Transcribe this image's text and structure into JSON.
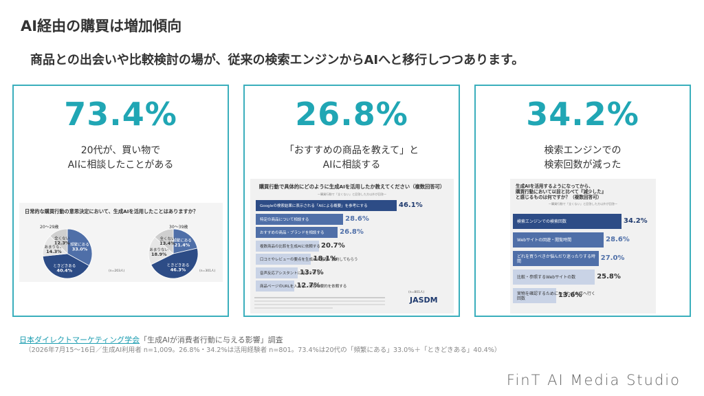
{
  "title": "AI経由の購買は増加傾向",
  "subtitle": "商品との出会いや比較検討の場が、従来の検索エンジンからAIへと移行しつつあります。",
  "cards": [
    {
      "big": "73.4%",
      "cap1": "20代が、買い物で",
      "cap2": "AIに相談したことがある",
      "panel_title": "日常的な購買行動の意思決定において、生成AIを活用したことはありますか？",
      "pies": [
        {
          "label": "20〜29歳",
          "n": "(n=203人)",
          "slices": [
            {
              "name": "頻繁にある",
              "value": 33.0,
              "color": "#4f6fa8",
              "text": "33.0%"
            },
            {
              "name": "ときどきある",
              "value": 40.4,
              "color": "#2d4c86",
              "text": "40.4%"
            },
            {
              "name": "あまりない",
              "value": 14.3,
              "color": "#e6e6e6",
              "text": "14.3%"
            },
            {
              "name": "全くない",
              "value": 12.3,
              "color": "#cfcfcf",
              "text": "12.3%"
            }
          ]
        },
        {
          "label": "30〜39歳",
          "n": "(n=301人)",
          "slices": [
            {
              "name": "頻繁にある",
              "value": 21.4,
              "color": "#4f6fa8",
              "text": "21.4%"
            },
            {
              "name": "ときどきある",
              "value": 46.3,
              "color": "#2d4c86",
              "text": "46.3%"
            },
            {
              "name": "あまりない",
              "value": 18.9,
              "color": "#e6e6e6",
              "text": "18.9%"
            },
            {
              "name": "全くない",
              "value": 13.4,
              "color": "#cfcfcf",
              "text": "13.4%"
            }
          ]
        }
      ]
    },
    {
      "big": "26.8%",
      "cap1": "「おすすめの商品を教えて」と",
      "cap2": "AIに相談する",
      "panel_title": "購買行動で具体的にどのように生成AIを活用したか教えてください（複数回答可）",
      "panel_note": "ー購買行動で「全くない」と回答した方以外が回答ー",
      "bars": [
        {
          "label": "Googleの検索結果に表示される「AIによる概要」を参考にする",
          "value": 46.1,
          "text": "46.1%"
        },
        {
          "label": "特定の商品について相談する",
          "value": 28.6,
          "text": "28.6%"
        },
        {
          "label": "おすすめの商品・ブランドを相談する",
          "value": 26.8,
          "text": "26.8%"
        },
        {
          "label": "複数商品の比較を生成AIに依頼する",
          "value": 20.7,
          "text": "20.7%"
        },
        {
          "label": "口コミやレビューの要点を生成AIに整理・要約してもらう",
          "value": 18.1,
          "text": "18.1%"
        },
        {
          "label": "音声反応アシスタントに話しかける",
          "value": 13.7,
          "text": "13.7%"
        },
        {
          "label": "商品ページのURLを入力し、内容の要約を依頼する",
          "value": 12.7,
          "text": "12.7%"
        }
      ],
      "n": "(n=801人)",
      "brand": "JASDM"
    },
    {
      "big": "34.2%",
      "cap1": "検索エンジンでの",
      "cap2": "検索回数が減った",
      "panel_title1": "生成AIを活用するようになってから、",
      "panel_title2": "購買行動において以前と比べて『減少した』",
      "panel_title3": "と感じるものは何ですか？（複数回答可）",
      "panel_note": "ー購買行動で「全くない」と回答した方以外が回答ー",
      "bars": [
        {
          "label": "検索エンジンでの検索回数",
          "value": 34.2,
          "text": "34.2%"
        },
        {
          "label": "Webサイトの回遊・閲覧時間",
          "value": 28.6,
          "text": "28.6%"
        },
        {
          "label": "どれを買うべきか悩んだり迷ったりする時間",
          "value": 27.0,
          "text": "27.0%"
        },
        {
          "label": "比較・参照するWebサイトの数",
          "value": 25.8,
          "text": "25.8%"
        },
        {
          "label": "実物を確認するためにわざわざお店へ行く回数",
          "value": 13.6,
          "text": "13.6%"
        }
      ]
    }
  ],
  "source_link": "日本ダイレクトマーケティング学会",
  "source_rest": "「生成AIが消費者行動に与える影響」調査",
  "survey": "（2026年7月15〜16日／生成AI利用者 n=1,009。26.8%・34.2%は活用経験者 n=801。73.4%は20代の「頻繁にある」33.0%＋「ときどきある」40.4%）",
  "logo": "FinT AI Media Studio",
  "colors": {
    "accent": "#20a6b4",
    "bar_dark": "#2d4c86",
    "bar_mid": "#4f6fa8",
    "bar_light": "#c9d3e6"
  }
}
